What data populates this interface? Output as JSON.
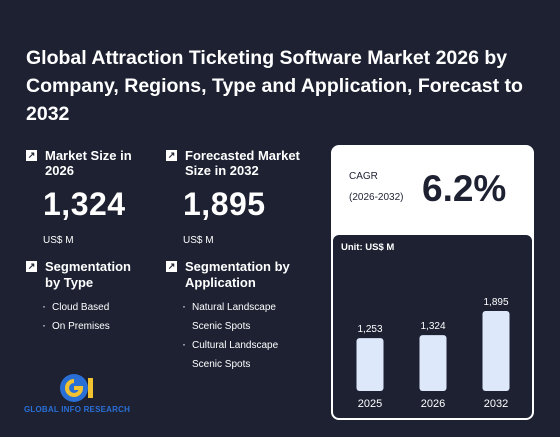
{
  "title": "Global Attraction Ticketing Software Market 2026 by Company, Regions, Type and Application, Forecast to 2032",
  "market_size": {
    "label": "Market Size in 2026",
    "value": "1,324",
    "unit": "US$ M"
  },
  "forecast": {
    "label": "Forecasted Market Size in 2032",
    "value": "1,895",
    "unit": "US$ M"
  },
  "segmentation_type": {
    "label": "Segmentation by Type",
    "items": [
      "Cloud Based",
      "On Premises"
    ]
  },
  "segmentation_application": {
    "label": "Segmentation by Application",
    "items": [
      "Natural Landscape Scenic Spots",
      "Cultural Landscape Scenic Spots"
    ]
  },
  "cagr": {
    "label": "CAGR",
    "range": "(2026-2032)",
    "value": "6.2%"
  },
  "logo": {
    "text": "GLOBAL INFO RESEARCH"
  },
  "colors": {
    "background": "#1d2132",
    "bar": "#dde9fb",
    "card": "#ffffff"
  },
  "chart_data": {
    "type": "bar",
    "unit_label": "Unit: US$ M",
    "categories": [
      "2025",
      "2026",
      "2032"
    ],
    "values": [
      1253,
      1324,
      1895
    ],
    "value_labels": [
      "1,253",
      "1,324",
      "1,895"
    ],
    "ylim": [
      0,
      1895
    ],
    "grid": false
  }
}
